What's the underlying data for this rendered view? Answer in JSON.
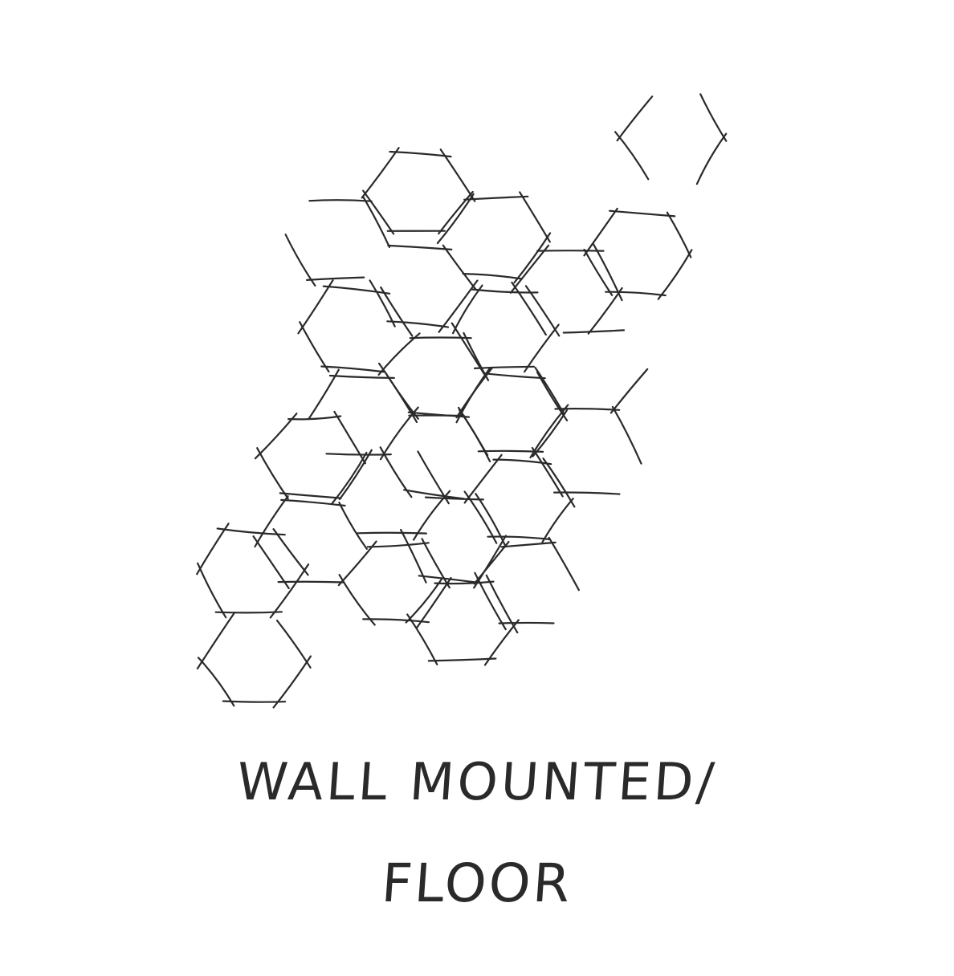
{
  "caption": {
    "line1": "WALL MOUNTED/",
    "line2": "FLOOR"
  },
  "colors": {
    "ink": "#2a2a2a",
    "paper": "#ffffff"
  }
}
